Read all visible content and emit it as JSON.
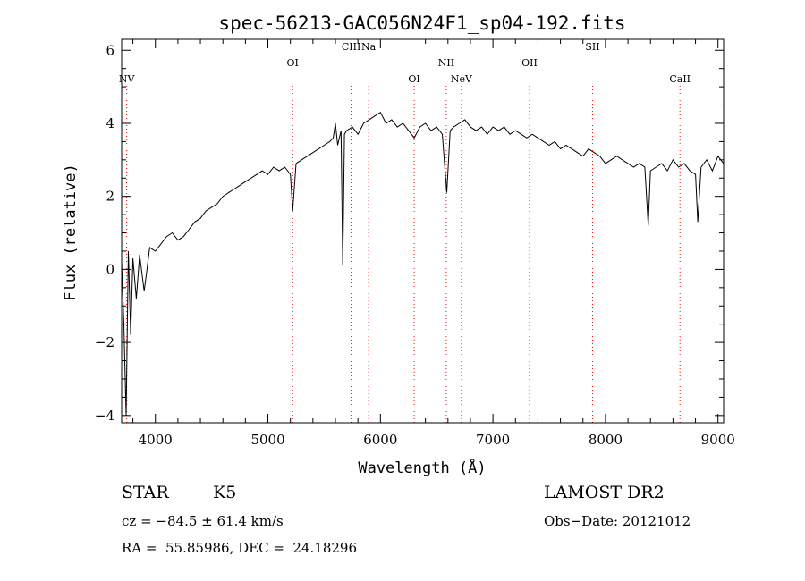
{
  "chart_data": {
    "type": "line",
    "title": "spec-56213-GAC056N24F1_sp04-192.fits",
    "xlabel": "Wavelength (Å)",
    "ylabel": "Flux (relative)",
    "xlim": [
      3700,
      9050
    ],
    "ylim": [
      -4.2,
      6.3
    ],
    "x_ticks": [
      4000,
      5000,
      6000,
      7000,
      8000,
      9000
    ],
    "y_ticks": [
      -4,
      -2,
      0,
      2,
      4,
      6
    ],
    "line_color": "#000000",
    "marker_color": "#ff0000",
    "lines": [
      {
        "label": "NV",
        "wavelength": 3745,
        "row": 0
      },
      {
        "label": "OI",
        "wavelength": 5220,
        "row": 1
      },
      {
        "label": "CIII",
        "wavelength": 5740,
        "row": 2
      },
      {
        "label": "Na",
        "wavelength": 5895,
        "row": 2
      },
      {
        "label": "OI",
        "wavelength": 6300,
        "row": 0
      },
      {
        "label": "NII",
        "wavelength": 6585,
        "row": 1
      },
      {
        "label": "NeV",
        "wavelength": 6720,
        "row": 0
      },
      {
        "label": "OII",
        "wavelength": 7325,
        "row": 1
      },
      {
        "label": "SII",
        "wavelength": 7885,
        "row": 2
      },
      {
        "label": "CaII",
        "wavelength": 8662,
        "row": 0
      }
    ],
    "series": [
      {
        "x": [
          3700,
          3720,
          3740,
          3760,
          3780,
          3800,
          3830,
          3860,
          3900,
          3950,
          4000,
          4050,
          4100,
          4150,
          4200,
          4250,
          4300,
          4350,
          4400,
          4450,
          4500,
          4550,
          4600,
          4650,
          4700,
          4750,
          4800,
          4850,
          4900,
          4950,
          5000,
          5050,
          5100,
          5150,
          5200,
          5220,
          5250,
          5300,
          5350,
          5400,
          5450,
          5500,
          5550,
          5580,
          5600,
          5620,
          5650,
          5665,
          5680,
          5700,
          5750,
          5800,
          5850,
          5900,
          5950,
          6000,
          6050,
          6100,
          6150,
          6200,
          6250,
          6300,
          6350,
          6400,
          6450,
          6500,
          6550,
          6590,
          6620,
          6650,
          6700,
          6750,
          6800,
          6850,
          6900,
          6950,
          7000,
          7050,
          7100,
          7150,
          7200,
          7250,
          7300,
          7350,
          7400,
          7450,
          7500,
          7550,
          7600,
          7650,
          7700,
          7750,
          7800,
          7850,
          7900,
          7950,
          8000,
          8050,
          8100,
          8150,
          8200,
          8250,
          8300,
          8350,
          8380,
          8400,
          8450,
          8500,
          8550,
          8600,
          8650,
          8700,
          8750,
          8800,
          8820,
          8850,
          8900,
          8950,
          9000,
          9050
        ],
        "y": [
          0.2,
          -1.5,
          -4.0,
          0.5,
          -1.8,
          0.3,
          -0.8,
          0.4,
          -0.6,
          0.6,
          0.5,
          0.7,
          0.9,
          1.0,
          0.8,
          0.9,
          1.1,
          1.3,
          1.4,
          1.6,
          1.7,
          1.8,
          2.0,
          2.1,
          2.2,
          2.3,
          2.4,
          2.5,
          2.6,
          2.7,
          2.6,
          2.8,
          2.7,
          2.8,
          2.6,
          1.6,
          2.9,
          3.0,
          3.1,
          3.2,
          3.3,
          3.4,
          3.5,
          3.6,
          4.0,
          3.4,
          3.8,
          0.1,
          3.7,
          3.8,
          3.9,
          3.7,
          4.0,
          4.1,
          4.2,
          4.3,
          4.0,
          4.1,
          3.9,
          4.0,
          3.8,
          3.6,
          3.9,
          4.0,
          3.8,
          3.9,
          3.7,
          2.1,
          3.8,
          3.9,
          4.0,
          4.1,
          3.9,
          3.8,
          3.9,
          3.7,
          3.9,
          3.8,
          3.9,
          3.7,
          3.8,
          3.7,
          3.6,
          3.7,
          3.6,
          3.5,
          3.4,
          3.5,
          3.3,
          3.4,
          3.3,
          3.2,
          3.1,
          3.3,
          3.2,
          3.1,
          2.9,
          3.0,
          3.1,
          3.0,
          2.9,
          2.8,
          2.9,
          2.8,
          1.2,
          2.7,
          2.8,
          2.9,
          2.7,
          3.0,
          2.8,
          2.9,
          2.7,
          2.6,
          1.3,
          2.8,
          3.0,
          2.7,
          3.1,
          2.9
        ]
      }
    ]
  },
  "info": {
    "class": "STAR",
    "subclass": "K5",
    "survey": "LAMOST DR2",
    "cz": "cz = −84.5 ± 61.4 km/s",
    "obs_date": "Obs−Date: 20121012",
    "radec": "RA =  55.85986, DEC =  24.18296"
  }
}
